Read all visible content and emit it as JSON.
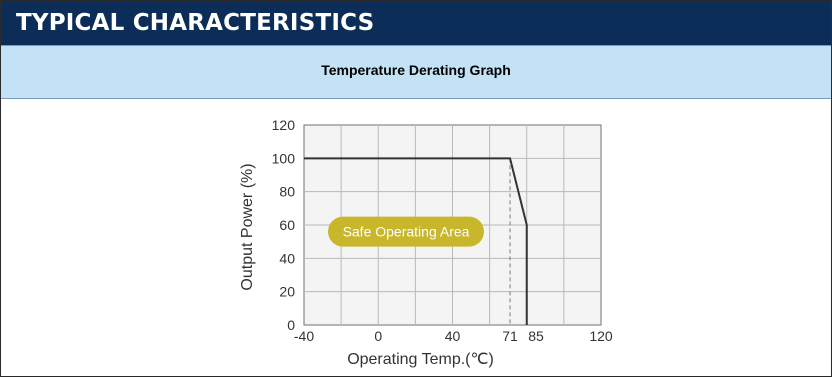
{
  "header": {
    "title": "TYPICAL CHARACTERISTICS"
  },
  "section": {
    "subtitle": "Temperature Derating Graph"
  },
  "colors": {
    "header_bg": "#0b2d57",
    "subheader_bg": "#c3e2f6",
    "safe_area_badge": "#c8b62b",
    "line": "#333333"
  },
  "chart_data": {
    "type": "line",
    "title": "",
    "xlabel": "Operating Temp.(℃)",
    "ylabel": "Output Power (%)",
    "xlim": [
      -40,
      120
    ],
    "ylim": [
      0,
      120
    ],
    "x_ticks": [
      -40,
      0,
      40,
      71,
      85,
      120
    ],
    "y_ticks": [
      0,
      20,
      40,
      60,
      80,
      100,
      120
    ],
    "grid": true,
    "series": [
      {
        "x": [
          -40,
          71,
          80,
          80
        ],
        "y": [
          100,
          100,
          60,
          0
        ]
      }
    ],
    "reference_lines": [
      {
        "x": 71,
        "style": "dashed"
      }
    ],
    "annotations": [
      {
        "text": "Safe Operating Area"
      }
    ]
  }
}
